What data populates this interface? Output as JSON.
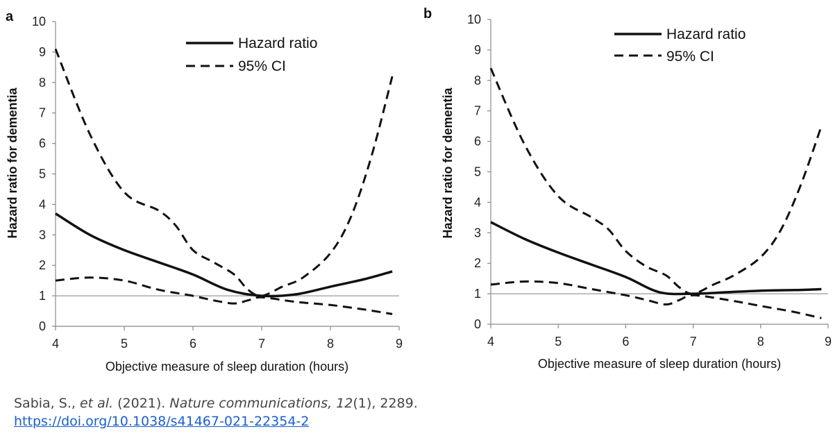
{
  "chart_data": [
    {
      "panel": "a",
      "type": "line",
      "xlabel": "Objective measure of sleep duration (hours)",
      "ylabel": "Hazard ratio for dementia",
      "xlim": [
        4,
        9
      ],
      "ylim": [
        0,
        10
      ],
      "xticks": [
        "4",
        "5",
        "6",
        "7",
        "8",
        "9"
      ],
      "yticks": [
        "0",
        "1",
        "2",
        "3",
        "4",
        "5",
        "6",
        "7",
        "8",
        "9",
        "10"
      ],
      "reference_line_y": 1,
      "legend_position": "top-center",
      "legend": [
        "Hazard ratio",
        "95% CI"
      ],
      "series": [
        {
          "name": "Hazard ratio",
          "style": "solid",
          "x": [
            4,
            4.5,
            5,
            5.5,
            6,
            6.5,
            7,
            7.5,
            8,
            8.5,
            8.9
          ],
          "y": [
            3.7,
            3.0,
            2.5,
            2.1,
            1.7,
            1.2,
            1.0,
            1.05,
            1.3,
            1.55,
            1.8
          ]
        },
        {
          "name": "95% CI",
          "style": "dashed",
          "part": "upper",
          "x": [
            4,
            4.5,
            5,
            5.5,
            5.75,
            6,
            6.3,
            6.6,
            6.8,
            7,
            7.3,
            7.6,
            8,
            8.3,
            8.6,
            8.9
          ],
          "y": [
            9.1,
            6.3,
            4.4,
            3.8,
            3.3,
            2.5,
            2.1,
            1.7,
            1.2,
            1.0,
            1.3,
            1.6,
            2.4,
            3.6,
            5.6,
            8.2
          ]
        },
        {
          "name": "95% CI",
          "style": "dashed",
          "part": "lower",
          "x": [
            4,
            4.5,
            5,
            5.5,
            6,
            6.3,
            6.6,
            6.8,
            7,
            7.5,
            8,
            8.5,
            8.9
          ],
          "y": [
            1.5,
            1.6,
            1.5,
            1.2,
            1.0,
            0.85,
            0.75,
            0.85,
            0.95,
            0.8,
            0.7,
            0.55,
            0.4
          ]
        }
      ]
    },
    {
      "panel": "b",
      "type": "line",
      "xlabel": "Objective measure of sleep duration (hours)",
      "ylabel": "Hazard ratio for dementia",
      "xlim": [
        4,
        9
      ],
      "ylim": [
        0,
        10
      ],
      "xticks": [
        "4",
        "5",
        "6",
        "7",
        "8",
        "9"
      ],
      "yticks": [
        "0",
        "1",
        "2",
        "3",
        "4",
        "5",
        "6",
        "7",
        "8",
        "9",
        "10"
      ],
      "reference_line_y": 1,
      "legend_position": "top-right",
      "legend": [
        "Hazard ratio",
        "95% CI"
      ],
      "series": [
        {
          "name": "Hazard ratio",
          "style": "solid",
          "x": [
            4,
            4.5,
            5,
            5.5,
            6,
            6.5,
            7,
            7.5,
            8,
            8.5,
            8.9
          ],
          "y": [
            3.35,
            2.8,
            2.35,
            1.95,
            1.55,
            1.05,
            1.0,
            1.05,
            1.1,
            1.12,
            1.15
          ]
        },
        {
          "name": "95% CI",
          "style": "dashed",
          "part": "upper",
          "x": [
            4,
            4.5,
            5,
            5.5,
            5.75,
            6,
            6.3,
            6.6,
            6.8,
            7,
            7.3,
            7.6,
            8,
            8.3,
            8.6,
            8.9
          ],
          "y": [
            8.4,
            5.9,
            4.2,
            3.5,
            3.1,
            2.4,
            1.9,
            1.6,
            1.2,
            1.0,
            1.3,
            1.6,
            2.2,
            3.1,
            4.6,
            6.5
          ]
        },
        {
          "name": "95% CI",
          "style": "dashed",
          "part": "lower",
          "x": [
            4,
            4.5,
            5,
            5.5,
            6,
            6.3,
            6.6,
            6.8,
            7,
            7.5,
            8,
            8.5,
            8.9
          ],
          "y": [
            1.3,
            1.4,
            1.35,
            1.15,
            0.95,
            0.8,
            0.65,
            0.8,
            0.95,
            0.8,
            0.6,
            0.4,
            0.2
          ]
        }
      ]
    }
  ],
  "citation": {
    "authors": "Sabia, S., ",
    "etal": "et al.",
    "year": " (2021). ",
    "journal": "Nature communications, 12",
    "issue": "(1), 2289.",
    "doi": "https://doi.org/10.1038/s41467-021-22354-2"
  }
}
